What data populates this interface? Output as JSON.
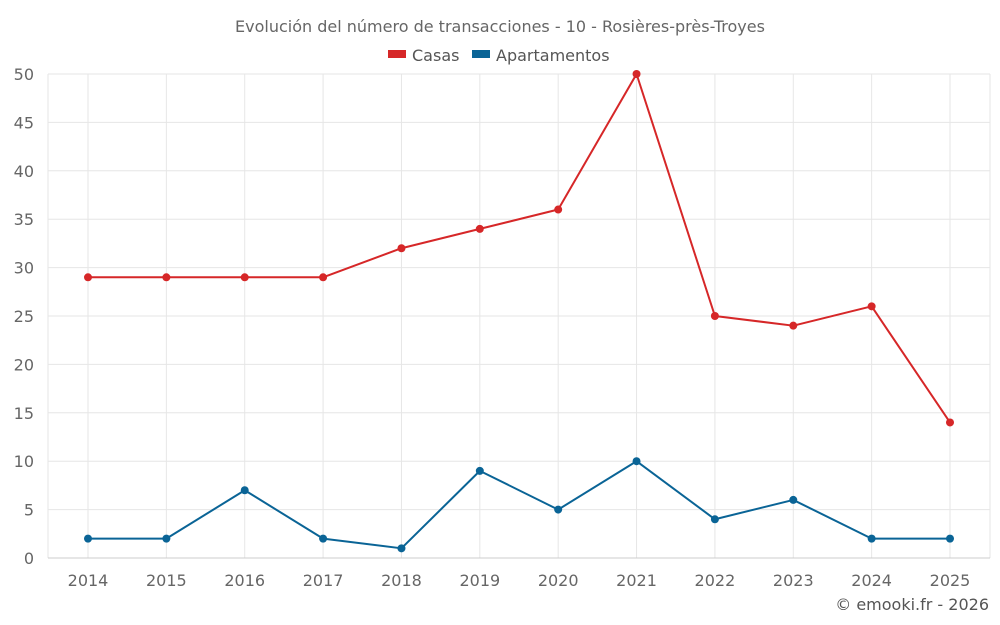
{
  "chart_data": {
    "type": "line",
    "title": "Evolución del número de transacciones - 10 - Rosières-près-Troyes",
    "categories": [
      "2014",
      "2015",
      "2016",
      "2017",
      "2018",
      "2019",
      "2020",
      "2021",
      "2022",
      "2023",
      "2024",
      "2025"
    ],
    "series": [
      {
        "name": "Casas",
        "color": "#d62728",
        "values": [
          29,
          29,
          29,
          29,
          32,
          34,
          36,
          50,
          25,
          24,
          26,
          14
        ]
      },
      {
        "name": "Apartamentos",
        "color": "#0a6496",
        "values": [
          2,
          2,
          7,
          2,
          1,
          9,
          5,
          10,
          4,
          6,
          2,
          2
        ]
      }
    ],
    "ylim": [
      0,
      50
    ],
    "yticks": [
      0,
      5,
      10,
      15,
      20,
      25,
      30,
      35,
      40,
      45,
      50
    ],
    "legend_position": "top-center",
    "grid": true
  },
  "credit": "© emooki.fr - 2026"
}
